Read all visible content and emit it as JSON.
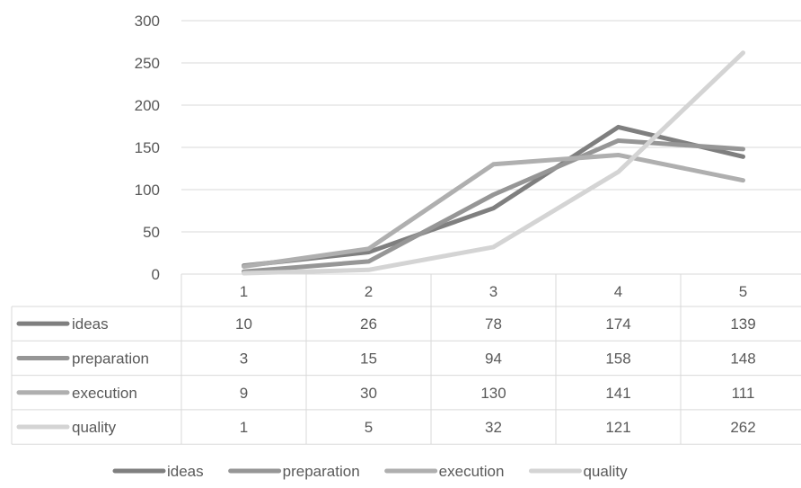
{
  "chart_data": {
    "type": "line",
    "title": "",
    "xlabel": "",
    "ylabel": "",
    "categories": [
      "1",
      "2",
      "3",
      "4",
      "5"
    ],
    "ylim": [
      0,
      300
    ],
    "yticks": [
      "0",
      "50",
      "100",
      "150",
      "200",
      "250",
      "300"
    ],
    "grid": true,
    "legend": "bottom",
    "data_table": true,
    "series": [
      {
        "name": "ideas",
        "values": [
          10,
          26,
          78,
          174,
          139
        ],
        "color": "#7f7f7f"
      },
      {
        "name": "preparation",
        "values": [
          3,
          15,
          94,
          158,
          148
        ],
        "color": "#969696"
      },
      {
        "name": "execution",
        "values": [
          9,
          30,
          130,
          141,
          111
        ],
        "color": "#afafaf"
      },
      {
        "name": "quality",
        "values": [
          1,
          5,
          32,
          121,
          262
        ],
        "color": "#d4d4d4"
      }
    ]
  }
}
